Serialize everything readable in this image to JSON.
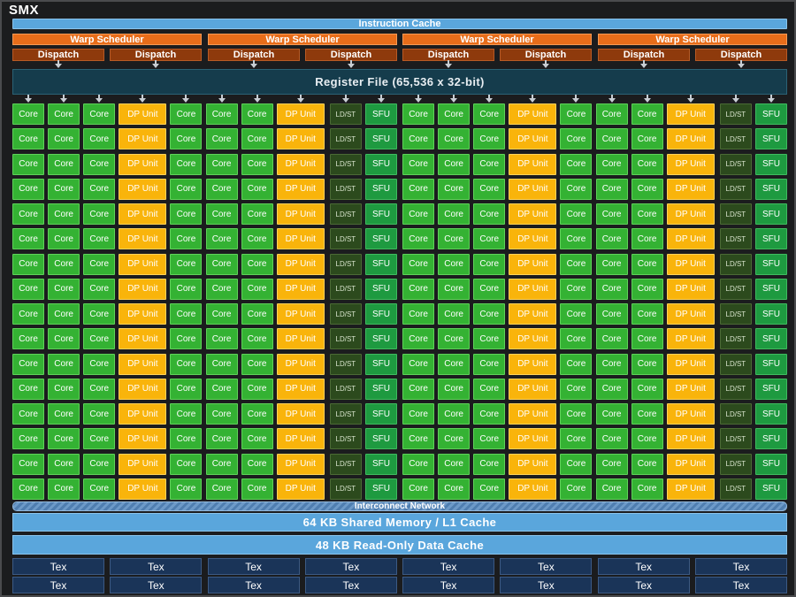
{
  "smx": {
    "title": "SMX",
    "instruction_cache": "Instruction Cache",
    "warp_scheduler_label": "Warp Scheduler",
    "warp_scheduler_count": 4,
    "dispatch_label": "Dispatch",
    "dispatch_per_scheduler": 2,
    "register_file": "Register File (65,536 x 32-bit)",
    "execution_units": {
      "row_count": 16,
      "row_pattern": [
        "Core",
        "Core",
        "Core",
        "DP Unit",
        "Core",
        "Core",
        "Core",
        "DP Unit",
        "LD/ST",
        "SFU",
        "Core",
        "Core",
        "Core",
        "DP Unit",
        "Core",
        "Core",
        "Core",
        "DP Unit",
        "LD/ST",
        "SFU"
      ],
      "colors": {
        "Core": "#34b233",
        "DP Unit": "#f9b40b",
        "LD/ST": "#2c4a1d",
        "SFU": "#1e9a40"
      }
    },
    "interconnect": "Interconnect Network",
    "shared_memory": "64 KB Shared Memory / L1 Cache",
    "readonly_cache": "48 KB Read-Only Data Cache",
    "tex_label": "Tex",
    "tex_rows": 2,
    "tex_per_row": 8
  }
}
